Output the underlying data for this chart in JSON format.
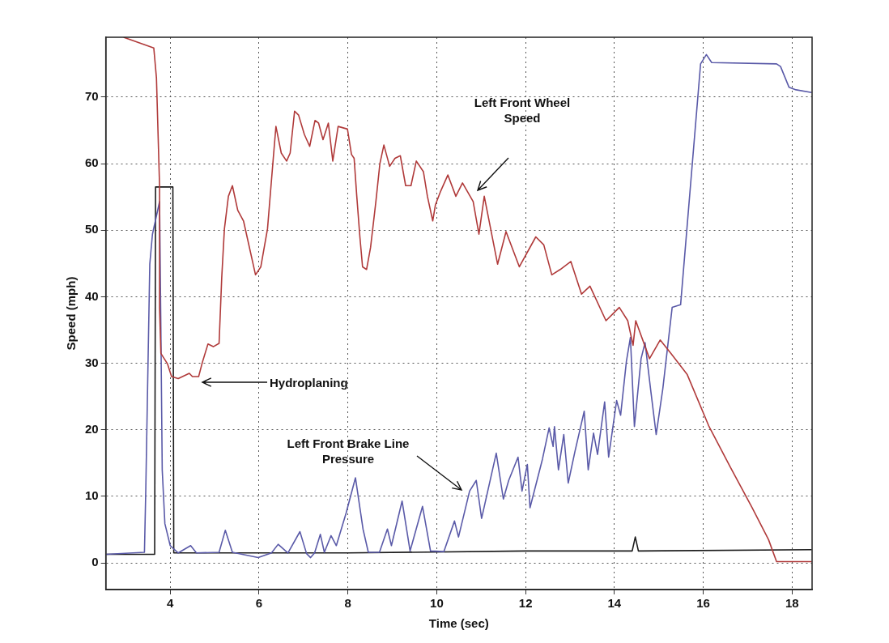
{
  "chart_data": {
    "type": "line",
    "xlabel": "Time (sec)",
    "ylabel": "Speed (mph)",
    "xlim": [
      2.55,
      18.45
    ],
    "ylim": [
      -4,
      79
    ],
    "xticks": [
      4,
      6,
      8,
      10,
      12,
      14,
      16,
      18
    ],
    "yticks": [
      0,
      10,
      20,
      30,
      40,
      50,
      60,
      70
    ],
    "grid": true,
    "legend": false,
    "marker": "none",
    "annotations": [
      "Left Front Wheel Speed",
      "Hydroplaning",
      "Left Front Brake Line Pressure"
    ],
    "series": [
      {
        "color": "#b03a3a",
        "x": [
          2.95,
          3.63,
          3.69,
          3.76,
          3.76,
          3.79,
          3.94,
          4.03,
          4.18,
          4.43,
          4.5,
          4.64,
          4.73,
          4.85,
          4.97,
          5.1,
          5.16,
          5.22,
          5.31,
          5.4,
          5.52,
          5.65,
          5.92,
          6.04,
          6.19,
          6.32,
          6.38,
          6.5,
          6.62,
          6.7,
          6.8,
          6.89,
          7.02,
          7.14,
          7.26,
          7.34,
          7.44,
          7.56,
          7.66,
          7.78,
          7.99,
          8.08,
          8.14,
          8.2,
          8.27,
          8.33,
          8.42,
          8.51,
          8.63,
          8.72,
          8.81,
          8.94,
          9.06,
          9.18,
          9.3,
          9.42,
          9.54,
          9.7,
          9.79,
          9.91,
          9.97,
          10.09,
          10.25,
          10.43,
          10.58,
          10.82,
          10.95,
          11.07,
          11.37,
          11.56,
          11.86,
          12.23,
          12.41,
          12.59,
          12.78,
          13.02,
          13.26,
          13.45,
          13.81,
          14.11,
          14.3,
          14.42,
          14.48,
          14.79,
          15.03,
          15.27,
          15.64,
          16.13,
          16.61,
          17.1,
          17.47,
          17.65,
          18.44
        ],
        "values": [
          79,
          77.4,
          72.9,
          56.7,
          38.4,
          31.5,
          29.9,
          28,
          27.7,
          28.5,
          28,
          28,
          30.3,
          32.9,
          32.5,
          33,
          42.9,
          50.2,
          55.1,
          56.7,
          53,
          51.4,
          43.3,
          44.5,
          50.2,
          60.8,
          65.6,
          61.6,
          60.4,
          61.6,
          67.9,
          67.3,
          64.4,
          62.6,
          66.5,
          66.1,
          63.6,
          66.1,
          60.4,
          65.6,
          65.2,
          61.4,
          60.8,
          55.1,
          49,
          44.5,
          44.1,
          47.4,
          54.3,
          60,
          62.8,
          59.6,
          60.8,
          61.2,
          56.7,
          56.7,
          60.4,
          58.8,
          55.1,
          51.4,
          53.8,
          55.9,
          58.3,
          55.1,
          57.1,
          54.3,
          49.4,
          55.1,
          44.9,
          49.8,
          44.5,
          49,
          47.8,
          43.3,
          44.1,
          45.3,
          40.4,
          41.6,
          36.4,
          38.4,
          36.4,
          32.7,
          36.4,
          30.7,
          33.5,
          31.5,
          28.3,
          20.5,
          14.4,
          8.3,
          3.5,
          0.2,
          0.2
        ]
      },
      {
        "color": "#5a5aa8",
        "x": [
          2.56,
          3.42,
          3.45,
          3.54,
          3.6,
          3.76,
          3.79,
          3.82,
          3.88,
          4.0,
          4.18,
          4.46,
          4.59,
          5.1,
          5.24,
          5.4,
          5.98,
          6.28,
          6.43,
          6.65,
          6.92,
          7.07,
          7.16,
          7.25,
          7.38,
          7.47,
          7.62,
          7.74,
          7.96,
          8.17,
          8.34,
          8.46,
          8.71,
          8.89,
          8.98,
          9.22,
          9.4,
          9.68,
          9.86,
          10.16,
          10.4,
          10.49,
          10.74,
          10.89,
          11.01,
          11.34,
          11.5,
          11.62,
          11.83,
          11.92,
          12.04,
          12.1,
          12.38,
          12.53,
          12.62,
          12.65,
          12.74,
          12.86,
          12.96,
          13.11,
          13.32,
          13.41,
          13.53,
          13.62,
          13.78,
          13.87,
          14.05,
          14.14,
          14.27,
          14.36,
          14.45,
          14.6,
          14.69,
          14.82,
          14.94,
          15.09,
          15.3,
          15.49,
          15.94,
          16.07,
          16.19,
          17.65,
          17.74,
          17.93,
          18.09,
          18.44
        ],
        "values": [
          1.3,
          1.6,
          11,
          44.9,
          49.4,
          54.3,
          35,
          14,
          5.9,
          2.6,
          1.5,
          2.6,
          1.5,
          1.6,
          4.9,
          1.6,
          0.8,
          1.5,
          2.8,
          1.5,
          4.7,
          1.4,
          0.8,
          1.5,
          4.3,
          1.6,
          4.1,
          2.6,
          7.5,
          12.8,
          5.1,
          1.6,
          1.6,
          5.1,
          2.6,
          9.3,
          1.8,
          8.5,
          1.8,
          1.7,
          6.3,
          3.9,
          10.8,
          12.4,
          6.7,
          16.5,
          9.6,
          12.4,
          15.9,
          10.8,
          14.8,
          8.3,
          15.6,
          20.3,
          17.5,
          20.5,
          14,
          19.3,
          12,
          16.7,
          22.8,
          14,
          19.5,
          16.3,
          24.2,
          15.9,
          24.4,
          22.2,
          30.3,
          33.9,
          20.5,
          30.7,
          33.1,
          25.8,
          19.3,
          26.2,
          38.4,
          38.8,
          75,
          76.4,
          75.2,
          75,
          74.6,
          71.5,
          71.1,
          70.7
        ]
      },
      {
        "color": "#1a1a1a",
        "x": [
          2.56,
          3.65,
          3.67,
          4.06,
          4.08,
          8.0,
          12.0,
          14.4,
          14.47,
          14.54,
          18.44
        ],
        "values": [
          1.3,
          1.3,
          56.5,
          56.5,
          1.5,
          1.5,
          1.8,
          1.8,
          3.9,
          1.8,
          2.0
        ]
      }
    ]
  }
}
